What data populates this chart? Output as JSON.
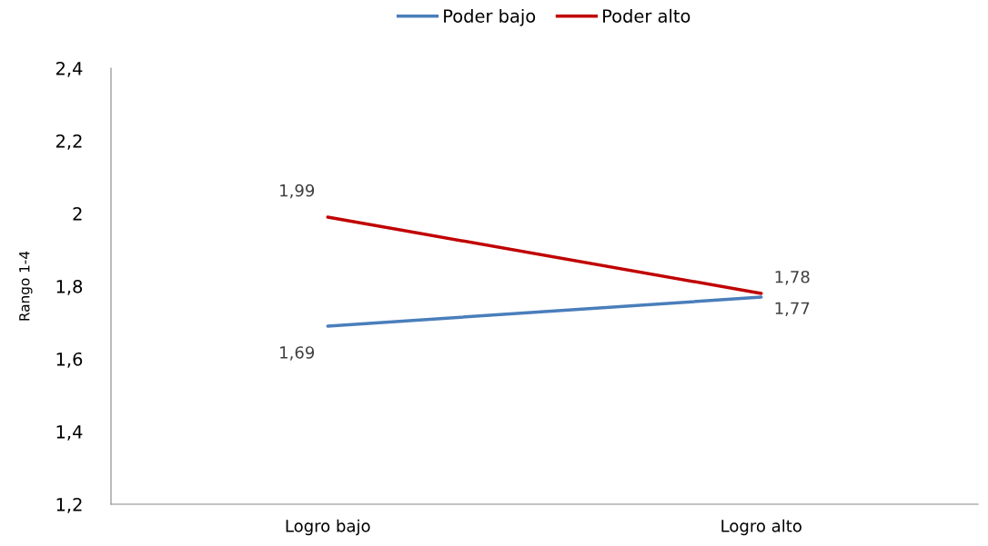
{
  "chart_data": {
    "type": "line",
    "ylabel": "Rango 1-4",
    "categories": [
      "Logro bajo",
      "Logro alto"
    ],
    "series": [
      {
        "name": "Poder bajo",
        "color": "#4a7ebb",
        "values": [
          1.69,
          1.77
        ],
        "value_labels": [
          "1,69",
          "1,77"
        ]
      },
      {
        "name": "Poder alto",
        "color": "#c00000",
        "values": [
          1.99,
          1.78
        ],
        "value_labels": [
          "1,99",
          "1,78"
        ]
      }
    ],
    "ylim": [
      1.2,
      2.4
    ],
    "yticks": [
      {
        "value": 1.2,
        "label": "1,2"
      },
      {
        "value": 1.4,
        "label": "1,4"
      },
      {
        "value": 1.6,
        "label": "1,6"
      },
      {
        "value": 1.8,
        "label": "1,8"
      },
      {
        "value": 2,
        "label": "2"
      },
      {
        "value": 2.2,
        "label": "2,2"
      },
      {
        "value": 2.4,
        "label": "2,4"
      }
    ],
    "grid": false,
    "legend": "top",
    "marker": "none",
    "line_style": "solid"
  }
}
